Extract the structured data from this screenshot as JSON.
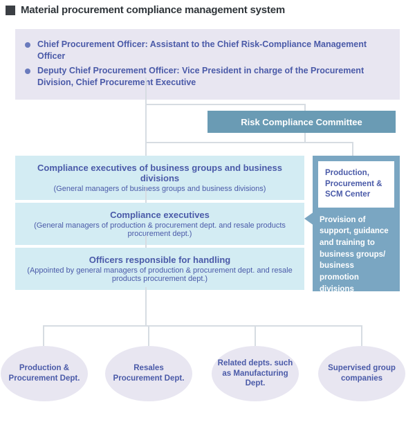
{
  "title": "Material procurement compliance management system",
  "colors": {
    "title_square": "#3b3f44",
    "top_box_bg": "#e8e6f1",
    "bullet_dot": "#6a7bbd",
    "text_blue": "#4a5aa8",
    "lightblue_box": "#d3ecf3",
    "committee_bg": "#6a9bb4",
    "side_panel_bg": "#7aa6c2",
    "ellipse_bg": "#e8e6f1",
    "connector": "#d6dce2",
    "white": "#ffffff"
  },
  "top_box": {
    "bullets": [
      "Chief Procurement Officer: Assistant to the Chief Risk-Compliance Management Officer",
      "Deputy Chief Procurement Officer: Vice President in charge of the Procurement Division, Chief Procurement Executive"
    ]
  },
  "committee": "Risk Compliance Committee",
  "main_boxes": [
    {
      "title": "Compliance executives of business groups and business divisions",
      "sub": "(General managers of business groups and business divisions)"
    },
    {
      "title": "Compliance executives",
      "sub": "(General managers of production & procurement dept. and resale products procurement dept.)"
    },
    {
      "title": "Officers responsible for handling",
      "sub": "(Appointed by general managers of production & procurement dept. and resale products procurement dept.)"
    }
  ],
  "side_panel": {
    "inner": "Production, Procurement & SCM Center",
    "desc": "Provision of support, guidance and training to business groups/ business promotion divisions"
  },
  "ellipses": [
    "Production & Procurement Dept.",
    "Resales Procurement Dept.",
    "Related depts. such as Manufacturing Dept.",
    "Supervised group companies"
  ]
}
